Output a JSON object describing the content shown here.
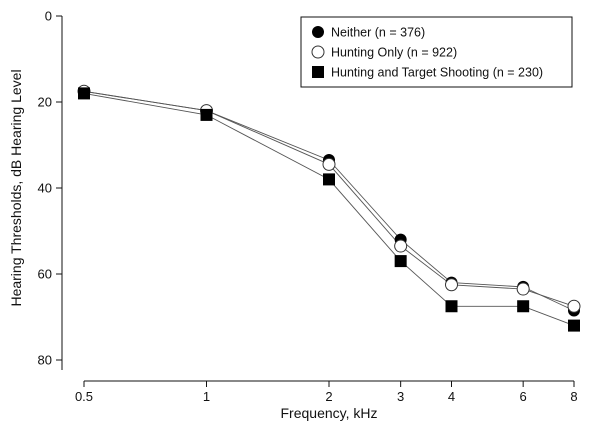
{
  "chart_data": {
    "type": "line",
    "xlabel": "Frequency, kHz",
    "ylabel": "Hearing Thresholds, dB Hearing Level",
    "x_scale": "log",
    "x_ticks": [
      0.5,
      1,
      2,
      3,
      4,
      6,
      8
    ],
    "x_tick_labels": [
      "0.5",
      "1",
      "2",
      "3",
      "4",
      "6",
      "8"
    ],
    "y_ticks": [
      0,
      20,
      40,
      60,
      80
    ],
    "y_tick_labels": [
      "0",
      "20",
      "40",
      "60",
      "80"
    ],
    "ylim": [
      0,
      80
    ],
    "y_inverted": true,
    "legend_position": "top-right",
    "x": [
      0.5,
      1,
      2,
      3,
      4,
      6,
      8
    ],
    "series": [
      {
        "name": "Neither (n = 376)",
        "marker": "filled-circle",
        "color": "#000000",
        "values": [
          17.5,
          22,
          33.5,
          52,
          62,
          63,
          68.5
        ]
      },
      {
        "name": "Hunting Only (n = 922)",
        "marker": "open-circle",
        "color": "#ffffff",
        "values": [
          17.5,
          22,
          34.5,
          53.5,
          62.5,
          63.5,
          67.5
        ]
      },
      {
        "name": "Hunting and Target Shooting (n = 230)",
        "marker": "filled-square",
        "color": "#000000",
        "values": [
          18,
          23,
          38,
          57,
          67.5,
          67.5,
          72
        ]
      }
    ]
  }
}
